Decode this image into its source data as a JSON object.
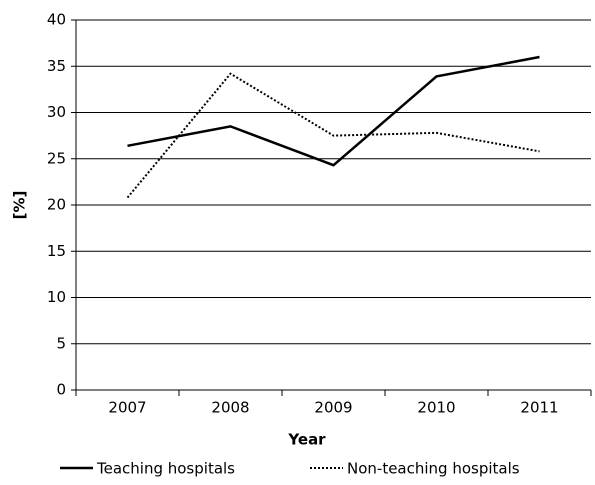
{
  "chart_data": {
    "type": "line",
    "x_label": "Year",
    "y_label": "[%]",
    "categories": [
      "2007",
      "2008",
      "2009",
      "2010",
      "2011"
    ],
    "series": [
      {
        "name": "Teaching hospitals",
        "color": "#000000",
        "style": "solid",
        "values": [
          26.4,
          28.5,
          24.3,
          33.9,
          36.0
        ]
      },
      {
        "name": "Non-teaching hospitals",
        "color": "#000000",
        "style": "dotted",
        "values": [
          20.8,
          34.2,
          27.5,
          27.8,
          25.8
        ]
      }
    ],
    "ylim": [
      0,
      40
    ],
    "yticks": [
      0,
      5,
      10,
      15,
      20,
      25,
      30,
      35,
      40
    ],
    "grid": true,
    "legend": "bottom"
  }
}
